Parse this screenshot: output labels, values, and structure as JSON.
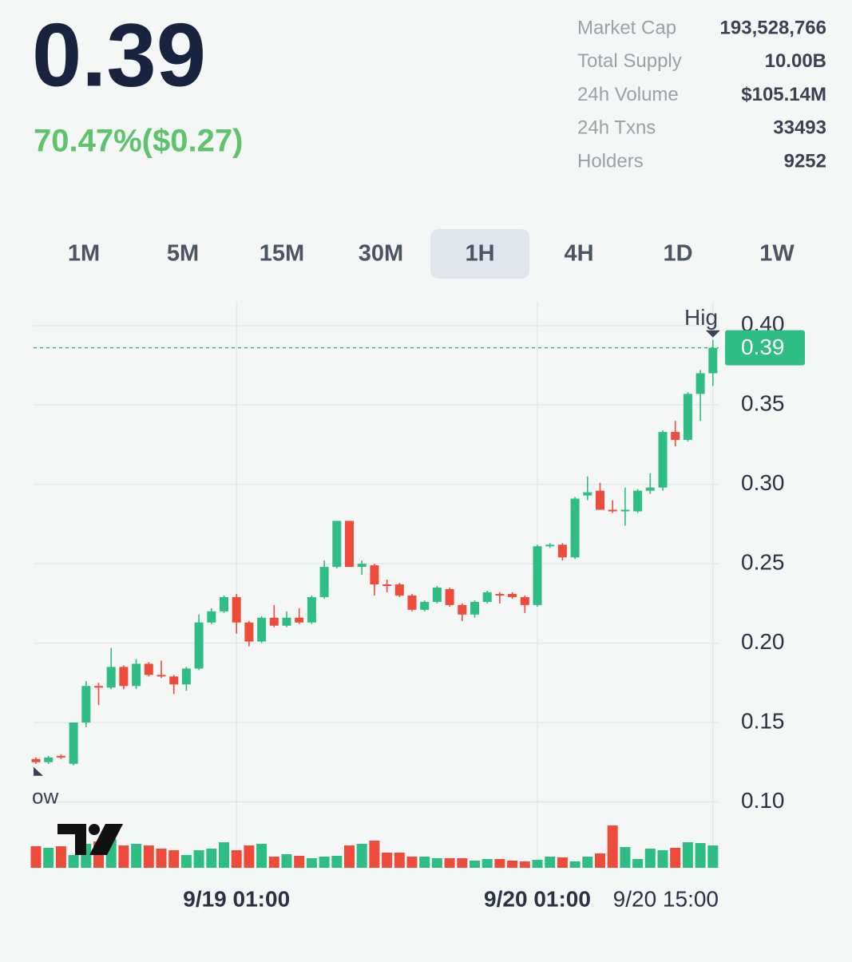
{
  "header": {
    "price": "0.39",
    "change": "70.47%($0.27)"
  },
  "stats": [
    {
      "label": "Market Cap",
      "value": "193,528,766"
    },
    {
      "label": "Total Supply",
      "value": "10.00B"
    },
    {
      "label": "24h Volume",
      "value": "$105.14M"
    },
    {
      "label": "24h Txns",
      "value": "33493"
    },
    {
      "label": "Holders",
      "value": "9252"
    }
  ],
  "timeframes": [
    "1M",
    "5M",
    "15M",
    "30M",
    "1H",
    "4H",
    "1D",
    "1W"
  ],
  "selected_timeframe": "1H",
  "chart_data": {
    "type": "candlestick",
    "up_color": "#2ebd85",
    "down_color": "#ee4b3a",
    "candles": {
      "open": [
        0.127,
        0.125,
        0.129,
        0.124,
        0.15,
        0.173,
        0.172,
        0.185,
        0.173,
        0.187,
        0.18,
        0.179,
        0.174,
        0.184,
        0.213,
        0.22,
        0.229,
        0.213,
        0.201,
        0.216,
        0.211,
        0.216,
        0.213,
        0.229,
        0.248,
        0.277,
        0.248,
        0.249,
        0.237,
        0.237,
        0.23,
        0.221,
        0.226,
        0.234,
        0.224,
        0.218,
        0.226,
        0.231,
        0.231,
        0.229,
        0.224,
        0.261,
        0.262,
        0.254,
        0.293,
        0.296,
        0.284,
        0.283,
        0.283,
        0.296,
        0.298,
        0.333,
        0.328,
        0.357,
        0.37
      ],
      "high": [
        0.128,
        0.129,
        0.13,
        0.15,
        0.176,
        0.175,
        0.197,
        0.186,
        0.19,
        0.188,
        0.189,
        0.18,
        0.185,
        0.218,
        0.222,
        0.23,
        0.231,
        0.214,
        0.217,
        0.224,
        0.22,
        0.222,
        0.23,
        0.252,
        0.277,
        0.277,
        0.252,
        0.25,
        0.24,
        0.238,
        0.231,
        0.227,
        0.236,
        0.235,
        0.225,
        0.227,
        0.233,
        0.232,
        0.232,
        0.23,
        0.262,
        0.263,
        0.263,
        0.292,
        0.305,
        0.301,
        0.29,
        0.298,
        0.297,
        0.307,
        0.334,
        0.34,
        0.358,
        0.372,
        0.391
      ],
      "low": [
        0.124,
        0.124,
        0.127,
        0.123,
        0.147,
        0.161,
        0.171,
        0.171,
        0.171,
        0.179,
        0.178,
        0.168,
        0.17,
        0.183,
        0.212,
        0.219,
        0.206,
        0.198,
        0.2,
        0.21,
        0.21,
        0.212,
        0.212,
        0.228,
        0.247,
        0.248,
        0.243,
        0.23,
        0.232,
        0.229,
        0.22,
        0.22,
        0.225,
        0.223,
        0.214,
        0.216,
        0.225,
        0.225,
        0.228,
        0.219,
        0.223,
        0.26,
        0.252,
        0.253,
        0.29,
        0.284,
        0.282,
        0.274,
        0.282,
        0.294,
        0.296,
        0.324,
        0.327,
        0.34,
        0.362
      ],
      "close": [
        0.125,
        0.128,
        0.128,
        0.15,
        0.173,
        0.172,
        0.185,
        0.173,
        0.187,
        0.18,
        0.179,
        0.174,
        0.184,
        0.213,
        0.22,
        0.229,
        0.213,
        0.201,
        0.216,
        0.211,
        0.216,
        0.213,
        0.229,
        0.248,
        0.277,
        0.248,
        0.25,
        0.237,
        0.236,
        0.23,
        0.221,
        0.226,
        0.235,
        0.224,
        0.218,
        0.226,
        0.232,
        0.23,
        0.229,
        0.224,
        0.261,
        0.262,
        0.254,
        0.291,
        0.295,
        0.284,
        0.283,
        0.284,
        0.296,
        0.298,
        0.333,
        0.328,
        0.357,
        0.37,
        0.386
      ]
    },
    "volume": [
      27,
      25,
      27,
      16,
      30,
      33,
      36,
      28,
      30,
      28,
      24,
      22,
      16,
      22,
      24,
      32,
      22,
      28,
      30,
      14,
      17,
      15,
      12,
      14,
      15,
      28,
      30,
      34,
      19,
      19,
      14,
      14,
      12,
      12,
      12,
      9,
      11,
      11,
      9,
      8,
      10,
      14,
      13,
      8,
      14,
      18,
      53,
      26,
      11,
      24,
      22,
      25,
      32,
      31,
      28
    ],
    "ylim": [
      0.058,
      0.415
    ],
    "yticks": [
      {
        "value": 0.1,
        "label": "0.10"
      },
      0.15,
      {
        "value": 0.2,
        "label": "0.20"
      },
      0.25,
      {
        "value": 0.3,
        "label": "0.30"
      },
      0.35,
      {
        "value": 0.4,
        "label": "0.40"
      }
    ],
    "xticks": [
      {
        "value": 16,
        "label": "9/19 01:00"
      },
      {
        "value": 40,
        "label": "9/20 01:00"
      },
      {
        "value": 54,
        "label": "9/20 15:00"
      }
    ],
    "last_price": {
      "value": 0.386,
      "label": "0.39"
    },
    "high_marker": "Hig",
    "low_marker": "ow",
    "grid": true
  }
}
